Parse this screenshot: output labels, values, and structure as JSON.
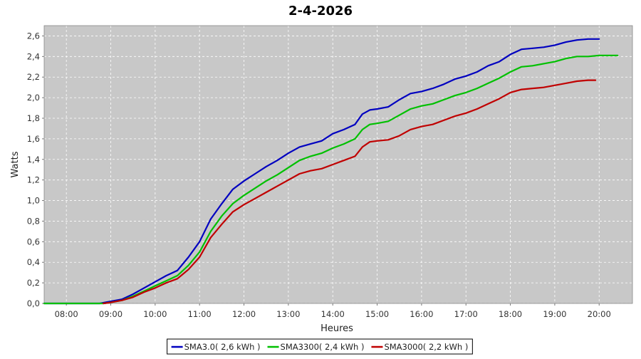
{
  "chart_data": {
    "type": "line",
    "title": "2-4-2026",
    "xlabel": "Heures",
    "ylabel": "Watts",
    "xlim": [
      "07:30",
      "20:45"
    ],
    "ylim": [
      0,
      2.7
    ],
    "x_ticks": [
      "08:00",
      "09:00",
      "10:00",
      "11:00",
      "12:00",
      "13:00",
      "14:00",
      "15:00",
      "16:00",
      "17:00",
      "18:00",
      "19:00",
      "20:00"
    ],
    "y_ticks": [
      "0,0",
      "0,2",
      "0,4",
      "0,6",
      "0,8",
      "1,0",
      "1,2",
      "1,4",
      "1,6",
      "1,8",
      "2,0",
      "2,2",
      "2,4",
      "2,6"
    ],
    "grid": true,
    "legend_position": "bottom",
    "series": [
      {
        "name": "SMA3.0( 2,6 kWh )",
        "color": "#0000c0",
        "points": [
          [
            "07:30",
            0.0
          ],
          [
            "08:00",
            0.0
          ],
          [
            "08:30",
            0.0
          ],
          [
            "08:45",
            0.0
          ],
          [
            "09:00",
            0.02
          ],
          [
            "09:15",
            0.04
          ],
          [
            "09:30",
            0.09
          ],
          [
            "09:45",
            0.15
          ],
          [
            "10:00",
            0.21
          ],
          [
            "10:15",
            0.27
          ],
          [
            "10:30",
            0.32
          ],
          [
            "10:45",
            0.45
          ],
          [
            "11:00",
            0.6
          ],
          [
            "11:15",
            0.82
          ],
          [
            "11:30",
            0.97
          ],
          [
            "11:45",
            1.11
          ],
          [
            "12:00",
            1.19
          ],
          [
            "12:15",
            1.26
          ],
          [
            "12:30",
            1.33
          ],
          [
            "12:45",
            1.39
          ],
          [
            "13:00",
            1.46
          ],
          [
            "13:15",
            1.52
          ],
          [
            "13:30",
            1.55
          ],
          [
            "13:45",
            1.58
          ],
          [
            "14:00",
            1.65
          ],
          [
            "14:15",
            1.69
          ],
          [
            "14:30",
            1.74
          ],
          [
            "14:40",
            1.84
          ],
          [
            "14:50",
            1.88
          ],
          [
            "15:00",
            1.89
          ],
          [
            "15:15",
            1.91
          ],
          [
            "15:30",
            1.98
          ],
          [
            "15:45",
            2.04
          ],
          [
            "16:00",
            2.06
          ],
          [
            "16:15",
            2.09
          ],
          [
            "16:30",
            2.13
          ],
          [
            "16:45",
            2.18
          ],
          [
            "17:00",
            2.21
          ],
          [
            "17:15",
            2.25
          ],
          [
            "17:30",
            2.31
          ],
          [
            "17:45",
            2.35
          ],
          [
            "18:00",
            2.42
          ],
          [
            "18:15",
            2.47
          ],
          [
            "18:30",
            2.48
          ],
          [
            "18:45",
            2.49
          ],
          [
            "19:00",
            2.51
          ],
          [
            "19:15",
            2.54
          ],
          [
            "19:30",
            2.56
          ],
          [
            "19:45",
            2.57
          ],
          [
            "20:00",
            2.57
          ]
        ]
      },
      {
        "name": "SMA3300( 2,4 kWh )",
        "color": "#00c000",
        "points": [
          [
            "07:30",
            0.0
          ],
          [
            "08:00",
            0.0
          ],
          [
            "08:30",
            0.0
          ],
          [
            "08:50",
            0.0
          ],
          [
            "09:00",
            0.01
          ],
          [
            "09:15",
            0.03
          ],
          [
            "09:30",
            0.07
          ],
          [
            "09:45",
            0.12
          ],
          [
            "10:00",
            0.17
          ],
          [
            "10:15",
            0.22
          ],
          [
            "10:30",
            0.27
          ],
          [
            "10:45",
            0.37
          ],
          [
            "11:00",
            0.5
          ],
          [
            "11:15",
            0.7
          ],
          [
            "11:30",
            0.85
          ],
          [
            "11:45",
            0.97
          ],
          [
            "12:00",
            1.05
          ],
          [
            "12:15",
            1.12
          ],
          [
            "12:30",
            1.19
          ],
          [
            "12:45",
            1.25
          ],
          [
            "13:00",
            1.32
          ],
          [
            "13:15",
            1.39
          ],
          [
            "13:30",
            1.43
          ],
          [
            "13:45",
            1.46
          ],
          [
            "14:00",
            1.51
          ],
          [
            "14:15",
            1.55
          ],
          [
            "14:30",
            1.6
          ],
          [
            "14:40",
            1.69
          ],
          [
            "14:50",
            1.74
          ],
          [
            "15:00",
            1.75
          ],
          [
            "15:15",
            1.77
          ],
          [
            "15:30",
            1.83
          ],
          [
            "15:45",
            1.89
          ],
          [
            "16:00",
            1.92
          ],
          [
            "16:15",
            1.94
          ],
          [
            "16:30",
            1.98
          ],
          [
            "16:45",
            2.02
          ],
          [
            "17:00",
            2.05
          ],
          [
            "17:15",
            2.09
          ],
          [
            "17:30",
            2.14
          ],
          [
            "17:45",
            2.19
          ],
          [
            "18:00",
            2.25
          ],
          [
            "18:15",
            2.3
          ],
          [
            "18:30",
            2.31
          ],
          [
            "18:45",
            2.33
          ],
          [
            "19:00",
            2.35
          ],
          [
            "19:15",
            2.38
          ],
          [
            "19:30",
            2.4
          ],
          [
            "19:45",
            2.4
          ],
          [
            "20:00",
            2.41
          ],
          [
            "20:25",
            2.41
          ]
        ]
      },
      {
        "name": "SMA3000( 2,2 kWh )",
        "color": "#c00000",
        "points": [
          [
            "08:50",
            0.0
          ],
          [
            "09:00",
            0.01
          ],
          [
            "09:15",
            0.03
          ],
          [
            "09:30",
            0.06
          ],
          [
            "09:45",
            0.11
          ],
          [
            "10:00",
            0.15
          ],
          [
            "10:15",
            0.2
          ],
          [
            "10:30",
            0.24
          ],
          [
            "10:45",
            0.33
          ],
          [
            "11:00",
            0.45
          ],
          [
            "11:15",
            0.64
          ],
          [
            "11:30",
            0.77
          ],
          [
            "11:45",
            0.89
          ],
          [
            "12:00",
            0.96
          ],
          [
            "12:15",
            1.02
          ],
          [
            "12:30",
            1.08
          ],
          [
            "12:45",
            1.14
          ],
          [
            "13:00",
            1.2
          ],
          [
            "13:15",
            1.26
          ],
          [
            "13:30",
            1.29
          ],
          [
            "13:45",
            1.31
          ],
          [
            "14:00",
            1.35
          ],
          [
            "14:15",
            1.39
          ],
          [
            "14:30",
            1.43
          ],
          [
            "14:40",
            1.52
          ],
          [
            "14:50",
            1.57
          ],
          [
            "15:00",
            1.58
          ],
          [
            "15:15",
            1.59
          ],
          [
            "15:30",
            1.63
          ],
          [
            "15:45",
            1.69
          ],
          [
            "16:00",
            1.72
          ],
          [
            "16:15",
            1.74
          ],
          [
            "16:30",
            1.78
          ],
          [
            "16:45",
            1.82
          ],
          [
            "17:00",
            1.85
          ],
          [
            "17:15",
            1.89
          ],
          [
            "17:30",
            1.94
          ],
          [
            "17:45",
            1.99
          ],
          [
            "18:00",
            2.05
          ],
          [
            "18:15",
            2.08
          ],
          [
            "18:30",
            2.09
          ],
          [
            "18:45",
            2.1
          ],
          [
            "19:00",
            2.12
          ],
          [
            "19:15",
            2.14
          ],
          [
            "19:30",
            2.16
          ],
          [
            "19:45",
            2.17
          ],
          [
            "19:55",
            2.17
          ]
        ]
      }
    ],
    "colors": {
      "plot_background": "#c8c8c8",
      "grid": "#ffffff",
      "page_background": "#ffffff"
    }
  }
}
